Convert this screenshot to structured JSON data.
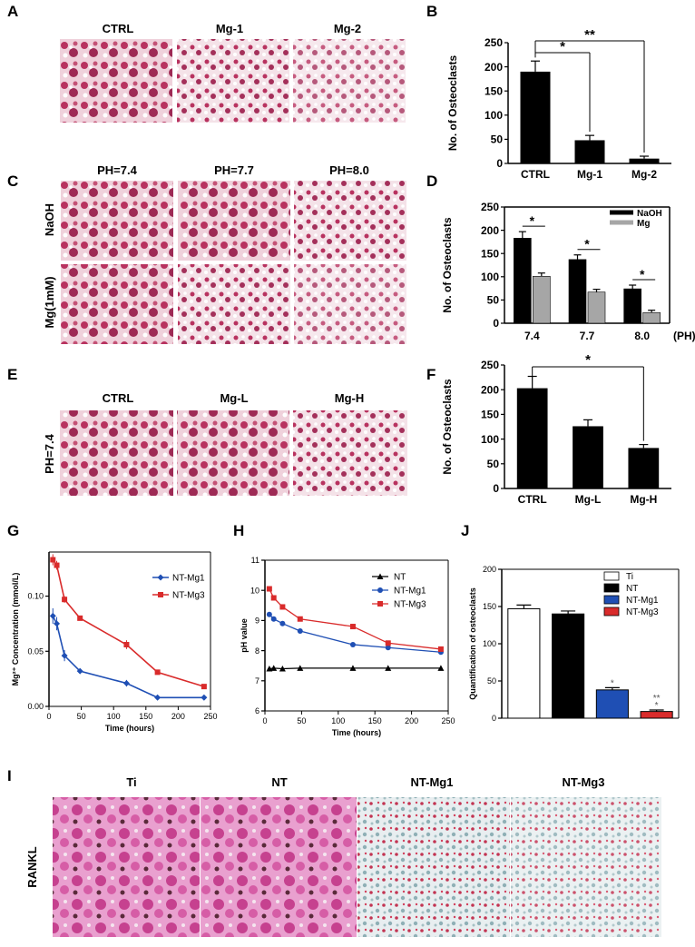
{
  "panels": {
    "A": {
      "label": "A",
      "cols": [
        "CTRL",
        "Mg-1",
        "Mg-2"
      ]
    },
    "B": {
      "label": "B"
    },
    "C": {
      "label": "C",
      "cols": [
        "PH=7.4",
        "PH=7.7",
        "PH=8.0"
      ],
      "rows": [
        "NaOH",
        "Mg(1mM)"
      ]
    },
    "D": {
      "label": "D",
      "unit": "(PH)"
    },
    "E": {
      "label": "E",
      "cols": [
        "CTRL",
        "Mg-L",
        "Mg-H"
      ],
      "rows": [
        "PH=7.4"
      ]
    },
    "F": {
      "label": "F"
    },
    "G": {
      "label": "G"
    },
    "H": {
      "label": "H"
    },
    "J": {
      "label": "J"
    },
    "I": {
      "label": "I",
      "cols": [
        "Ti",
        "NT",
        "NT-Mg1",
        "NT-Mg3"
      ],
      "rows": [
        "RANKL"
      ]
    }
  },
  "colors": {
    "black": "#000000",
    "gray": "#a6a6a6",
    "blue": "#1f4fb4",
    "red": "#d92b2b",
    "stain": "#b8325f",
    "stain_light": "#f1d6df"
  },
  "chart_data": [
    {
      "id": "B",
      "type": "bar",
      "categories": [
        "CTRL",
        "Mg-1",
        "Mg-2"
      ],
      "values": [
        190,
        48,
        10
      ],
      "errors": [
        22,
        10,
        5
      ],
      "ylabel": "No. of Osteoclasts",
      "ylim": [
        0,
        250
      ],
      "yticks": [
        0,
        50,
        100,
        150,
        200,
        250
      ],
      "significance": [
        {
          "from": 0,
          "to": 1,
          "mark": "*"
        },
        {
          "from": 0,
          "to": 2,
          "mark": "**"
        }
      ]
    },
    {
      "id": "D",
      "type": "bar",
      "categories": [
        "7.4",
        "7.7",
        "8.0"
      ],
      "series": [
        {
          "name": "NaOH",
          "values": [
            183,
            137,
            74
          ],
          "errors": [
            14,
            10,
            8
          ]
        },
        {
          "name": "Mg",
          "values": [
            101,
            67,
            23
          ],
          "errors": [
            7,
            6,
            5
          ]
        }
      ],
      "ylabel": "No. of Osteoclasts",
      "ylim": [
        0,
        250
      ],
      "yticks": [
        0,
        50,
        100,
        150,
        200,
        250
      ],
      "legend": "top-right",
      "significance": [
        {
          "group": 0,
          "mark": "*"
        },
        {
          "group": 1,
          "mark": "*"
        },
        {
          "group": 2,
          "mark": "*"
        }
      ]
    },
    {
      "id": "F",
      "type": "bar",
      "categories": [
        "CTRL",
        "Mg-L",
        "Mg-H"
      ],
      "values": [
        203,
        126,
        82
      ],
      "errors": [
        24,
        13,
        7
      ],
      "ylabel": "No. of Osteoclasts",
      "ylim": [
        0,
        250
      ],
      "yticks": [
        0,
        50,
        100,
        150,
        200,
        250
      ],
      "significance": [
        {
          "from": 0,
          "to": 2,
          "mark": "*"
        }
      ]
    },
    {
      "id": "G",
      "type": "line",
      "x": [
        6,
        12,
        24,
        48,
        120,
        168,
        240
      ],
      "series": [
        {
          "name": "NT-Mg1",
          "values": [
            0.082,
            0.075,
            0.046,
            0.032,
            0.021,
            0.008,
            0.008
          ],
          "errors": [
            0.007,
            0.006,
            0.005,
            0.002,
            0.003,
            0.001,
            0.001
          ]
        },
        {
          "name": "NT-Mg3",
          "values": [
            0.133,
            0.128,
            0.097,
            0.08,
            0.056,
            0.031,
            0.018
          ],
          "errors": [
            0.005,
            0.004,
            0.003,
            0.002,
            0.004,
            0.002,
            0.002
          ]
        }
      ],
      "xlabel": "Time (hours)",
      "ylabel": "Mg²⁺ Concentration (mmol/L)",
      "xlim": [
        0,
        250
      ],
      "ylim": [
        0,
        0.14
      ],
      "xticks": [
        0,
        50,
        100,
        150,
        200,
        250
      ],
      "yticks": [
        0.0,
        0.05,
        0.1
      ],
      "ytick_labels": [
        "0.00",
        "0.05",
        "0.10"
      ],
      "legend": "top-right"
    },
    {
      "id": "H",
      "type": "line",
      "x": [
        6,
        12,
        24,
        48,
        120,
        168,
        240
      ],
      "series": [
        {
          "name": "NT",
          "values": [
            7.4,
            7.42,
            7.4,
            7.42,
            7.42,
            7.42,
            7.42
          ]
        },
        {
          "name": "NT-Mg1",
          "values": [
            9.2,
            9.05,
            8.9,
            8.65,
            8.2,
            8.1,
            7.95
          ]
        },
        {
          "name": "NT-Mg3",
          "values": [
            10.05,
            9.75,
            9.45,
            9.05,
            8.8,
            8.25,
            8.05
          ]
        }
      ],
      "xlabel": "Time (hours)",
      "ylabel": "pH value",
      "xlim": [
        0,
        250
      ],
      "ylim": [
        6,
        11
      ],
      "xticks": [
        0,
        50,
        100,
        150,
        200,
        250
      ],
      "yticks": [
        6,
        7,
        8,
        9,
        10,
        11
      ],
      "legend": "top-right"
    },
    {
      "id": "J",
      "type": "bar",
      "categories": [
        "Ti",
        "NT",
        "NT-Mg1",
        "NT-Mg3"
      ],
      "values": [
        147,
        140,
        38,
        9
      ],
      "errors": [
        5,
        4,
        3,
        2
      ],
      "ylabel": "Quantification of osteoclasts",
      "ylim": [
        0,
        200
      ],
      "yticks": [
        0,
        50,
        100,
        150,
        200
      ],
      "legend": "top-right",
      "bar_marks": [
        "",
        "",
        "*",
        "**\n*"
      ]
    }
  ]
}
